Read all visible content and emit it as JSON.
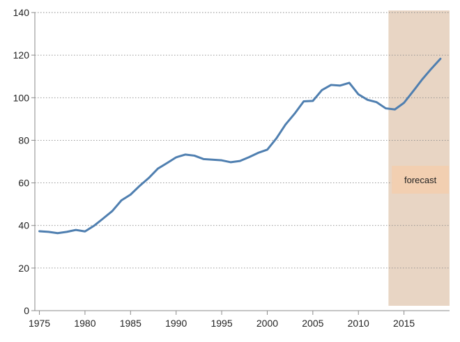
{
  "chart_data": {
    "type": "line",
    "title": "",
    "xlabel": "",
    "ylabel": "",
    "xlim": [
      1974.5,
      2020
    ],
    "ylim": [
      0,
      140
    ],
    "grid": "horizontal dotted",
    "x_ticks": [
      1975,
      1980,
      1985,
      1990,
      1995,
      2000,
      2005,
      2010,
      2015
    ],
    "y_ticks": [
      0,
      20,
      40,
      60,
      80,
      100,
      120,
      140
    ],
    "series": [
      {
        "color": "#4f7fb0",
        "x": [
          1975,
          1976,
          1977,
          1978,
          1979,
          1980,
          1981,
          1982,
          1983,
          1984,
          1985,
          1986,
          1987,
          1988,
          1989,
          1990,
          1991,
          1992,
          1993,
          1994,
          1995,
          1996,
          1997,
          1998,
          1999,
          2000,
          2001,
          2002,
          2003,
          2004,
          2005,
          2006,
          2007,
          2008,
          2009,
          2010,
          2011,
          2012,
          2013,
          2014,
          2015,
          2016,
          2017,
          2018,
          2019
        ],
        "values": [
          37.3,
          37.0,
          36.4,
          37.0,
          37.9,
          37.2,
          39.9,
          43.3,
          46.8,
          51.8,
          54.5,
          58.6,
          62.3,
          66.7,
          69.3,
          72.0,
          73.3,
          72.8,
          71.2,
          70.9,
          70.6,
          69.7,
          70.3,
          72.1,
          74.1,
          75.6,
          80.9,
          87.4,
          92.5,
          98.3,
          98.5,
          103.6,
          106.0,
          105.7,
          107.0,
          101.6,
          99.0,
          97.9,
          95.0,
          94.5,
          97.6,
          103.0,
          108.6,
          113.6,
          118.3
        ]
      }
    ],
    "forecast_region": {
      "x_start": 2013.3,
      "x_end": 2020,
      "color": "#e8d5c4"
    },
    "annotations": [
      {
        "text": "forecast",
        "x": 2016.8,
        "y": 61.5,
        "box_color": "#f2cfb1"
      }
    ]
  }
}
